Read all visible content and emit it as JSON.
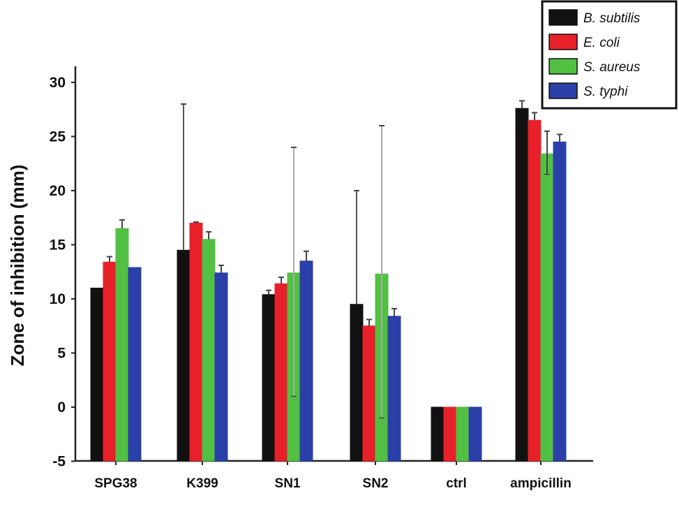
{
  "chart_data": {
    "type": "bar",
    "title": "",
    "xlabel": "",
    "ylabel": "Zone of inhibition (mm)",
    "ylim": [
      -5,
      30
    ],
    "yticks": [
      -5,
      0,
      5,
      10,
      15,
      20,
      25,
      30
    ],
    "categories": [
      "SPG38",
      "K399",
      "SN1",
      "SN2",
      "ctrl",
      "ampicillin"
    ],
    "legend_position": "top-right",
    "series": [
      {
        "name": "B. subtilis",
        "color": "#111111",
        "values": [
          11.0,
          14.5,
          10.4,
          9.5,
          0,
          27.6
        ],
        "error_upper": [
          11.0,
          28,
          10.8,
          20,
          0,
          28.3
        ],
        "error_lower": [
          11.0,
          14.5,
          10.4,
          9.5,
          0,
          27.6
        ]
      },
      {
        "name": "E. coli",
        "color": "#e8202a",
        "values": [
          13.4,
          17.0,
          11.4,
          7.5,
          0,
          26.5
        ],
        "error_upper": [
          13.9,
          17.1,
          12.0,
          8.1,
          0,
          27.2
        ],
        "error_lower": [
          13.4,
          17.0,
          11.4,
          7.5,
          0,
          26.5
        ]
      },
      {
        "name": "S. aureus",
        "color": "#52c043",
        "values": [
          16.5,
          15.5,
          12.4,
          12.3,
          0,
          23.4
        ],
        "error_upper": [
          17.3,
          16.2,
          24,
          26,
          0,
          25.5
        ],
        "error_lower": [
          16.5,
          15.5,
          1,
          -1,
          0,
          21.5
        ]
      },
      {
        "name": "S. typhi",
        "color": "#2b3fa8",
        "values": [
          12.9,
          12.4,
          13.5,
          8.4,
          0,
          24.5
        ],
        "error_upper": [
          12.9,
          13.1,
          14.4,
          9.1,
          0,
          25.2
        ],
        "error_lower": [
          12.9,
          12.4,
          13.5,
          8.4,
          0,
          24.5
        ]
      }
    ]
  }
}
